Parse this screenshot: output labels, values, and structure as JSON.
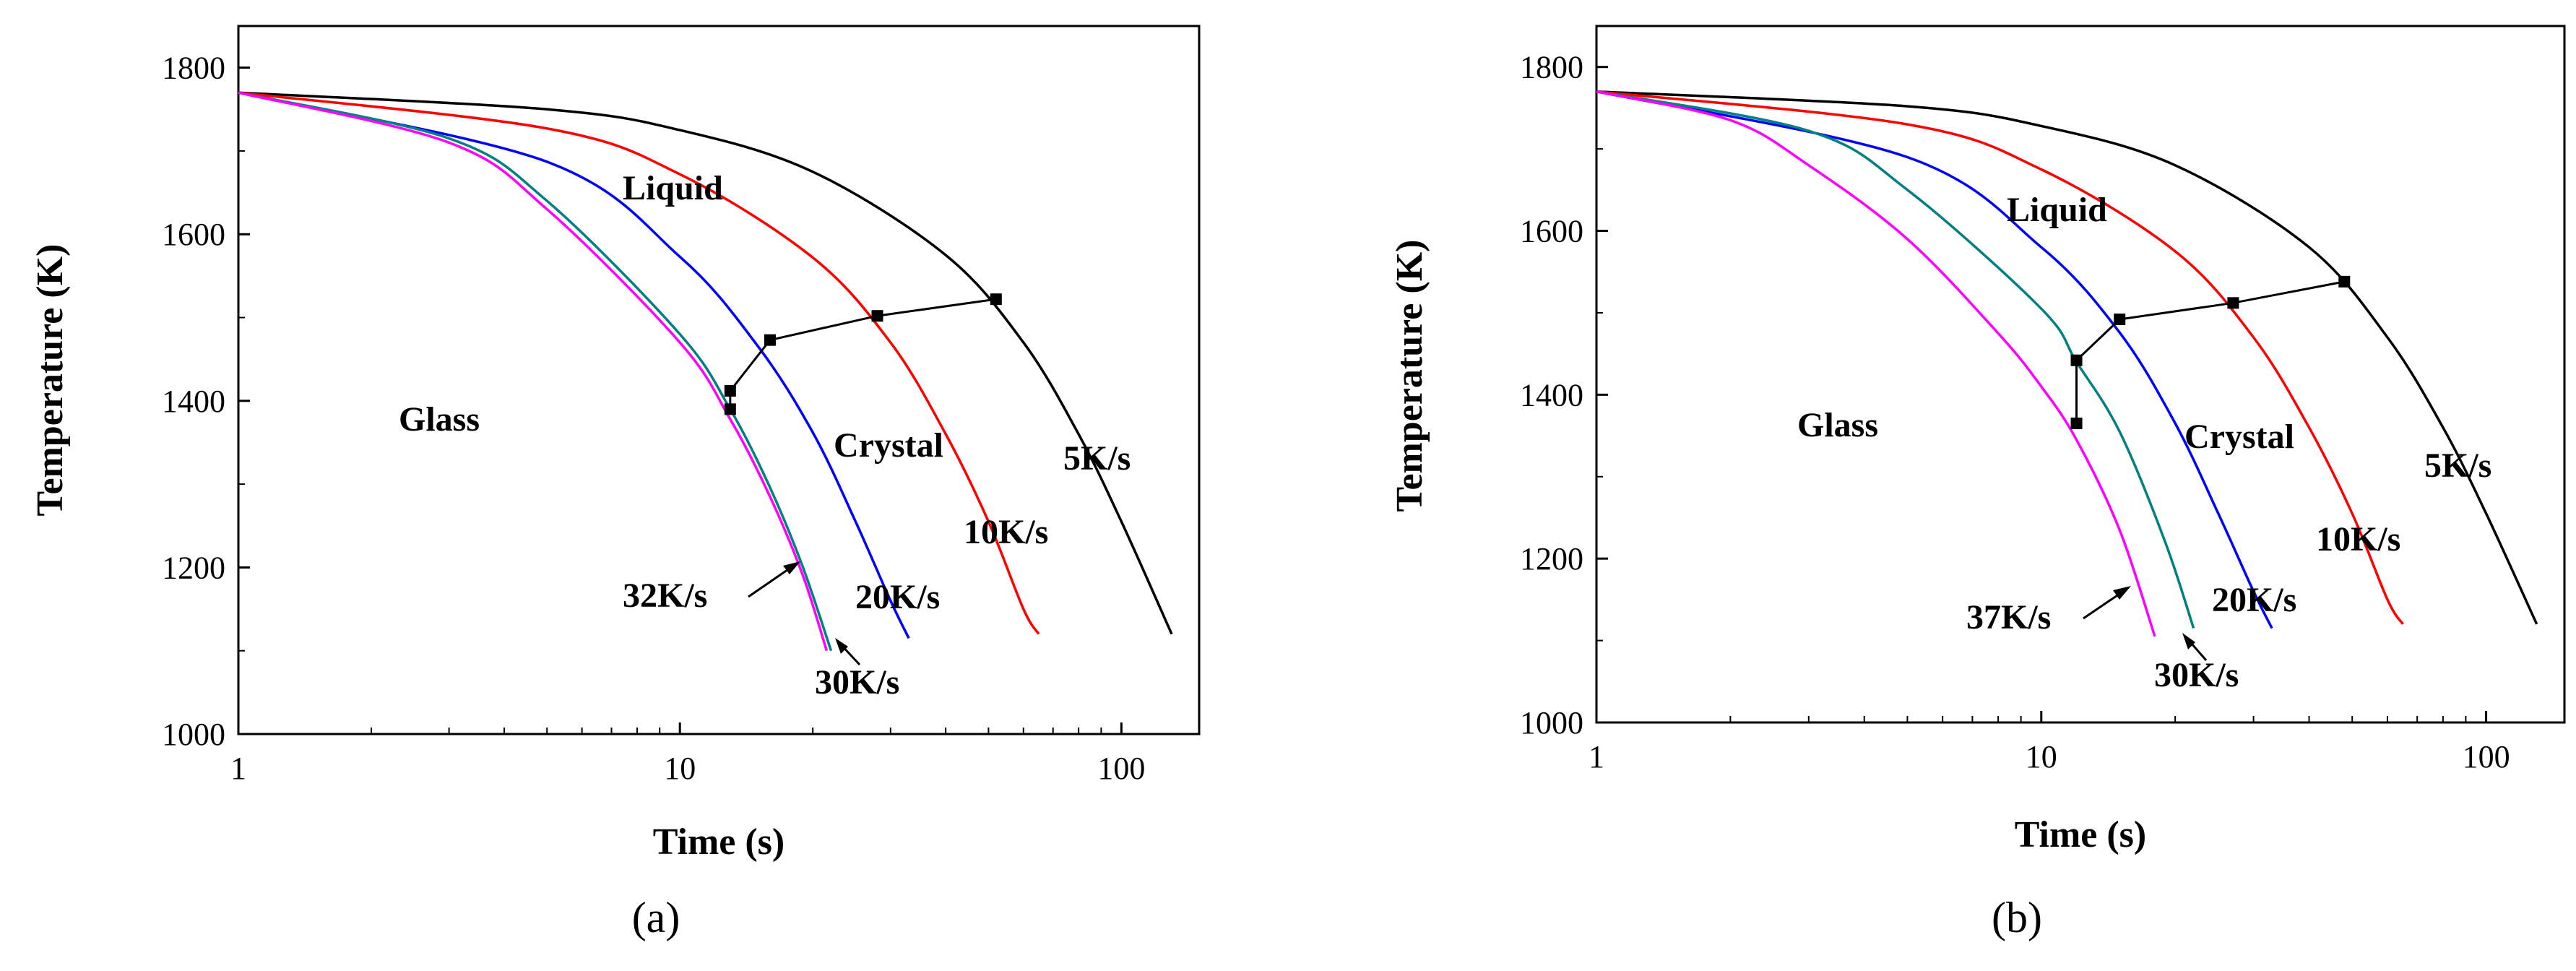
{
  "chart_data": [
    {
      "type": "line",
      "panel_label": "(a)",
      "xlabel": "Time (s)",
      "ylabel": "Temperature (K)",
      "xscale": "log",
      "xlim": [
        1,
        150
      ],
      "ylim": [
        1000,
        1850
      ],
      "x_ticks": [
        "1",
        "10",
        "100"
      ],
      "y_ticks": [
        "1000",
        "1200",
        "1400",
        "1600",
        "1800"
      ],
      "series": [
        {
          "name": "5K/s",
          "color": "#000000",
          "x": [
            1,
            5,
            10,
            20,
            40,
            60,
            80,
            100,
            130
          ],
          "y": [
            1770,
            1750,
            1725,
            1675,
            1575,
            1470,
            1360,
            1255,
            1120
          ]
        },
        {
          "name": "10K/s",
          "color": "#ff0000",
          "x": [
            1,
            5,
            10,
            20,
            30,
            40,
            50,
            60,
            65
          ],
          "y": [
            1770,
            1727,
            1672,
            1572,
            1470,
            1360,
            1255,
            1150,
            1120
          ]
        },
        {
          "name": "20K/s",
          "color": "#0000ff",
          "x": [
            1,
            5,
            10,
            15,
            20,
            25,
            30,
            33
          ],
          "y": [
            1770,
            1687,
            1573,
            1466,
            1362,
            1255,
            1160,
            1115
          ]
        },
        {
          "name": "30K/s",
          "color": "#008080",
          "x": [
            1,
            3,
            5,
            10,
            13,
            16,
            19,
            22
          ],
          "y": [
            1770,
            1715,
            1640,
            1480,
            1390,
            1296,
            1200,
            1100
          ]
        },
        {
          "name": "32K/s",
          "color": "#ff00ff",
          "x": [
            1,
            3,
            5,
            10,
            13,
            16,
            19,
            21.5
          ],
          "y": [
            1770,
            1710,
            1630,
            1470,
            1378,
            1285,
            1190,
            1100
          ]
        }
      ],
      "transition_points": {
        "x": [
          13,
          16,
          28,
          52
        ],
        "y": [
          1412,
          1473,
          1502,
          1522
        ]
      },
      "extra_marker": {
        "x": 13,
        "y": 1390
      },
      "annotations": {
        "liquid": "Liquid",
        "glass": "Glass",
        "crystal": "Crystal",
        "label_5": "5K/s",
        "label_10": "10K/s",
        "label_20": "20K/s",
        "label_30": "30K/s",
        "label_32": "32K/s"
      }
    },
    {
      "type": "line",
      "panel_label": "(b)",
      "xlabel": "Time (s)",
      "ylabel": "Temperature (K)",
      "xscale": "log",
      "xlim": [
        1,
        150
      ],
      "ylim": [
        1000,
        1850
      ],
      "x_ticks": [
        "1",
        "10",
        "100"
      ],
      "y_ticks": [
        "1000",
        "1200",
        "1400",
        "1600",
        "1800"
      ],
      "series": [
        {
          "name": "5K/s",
          "color": "#000000",
          "x": [
            1,
            5,
            10,
            20,
            40,
            60,
            80,
            100,
            130
          ],
          "y": [
            1770,
            1752,
            1728,
            1680,
            1580,
            1470,
            1360,
            1255,
            1120
          ]
        },
        {
          "name": "10K/s",
          "color": "#ff0000",
          "x": [
            1,
            5,
            10,
            20,
            30,
            40,
            50,
            60,
            65
          ],
          "y": [
            1770,
            1730,
            1675,
            1575,
            1470,
            1360,
            1255,
            1150,
            1120
          ]
        },
        {
          "name": "20K/s",
          "color": "#0000ff",
          "x": [
            1,
            5,
            10,
            15,
            20,
            25,
            30,
            33
          ],
          "y": [
            1770,
            1690,
            1580,
            1476,
            1365,
            1255,
            1160,
            1115
          ]
        },
        {
          "name": "30K/s",
          "color": "#008080",
          "x": [
            1,
            3,
            5,
            10,
            12,
            15,
            19,
            22
          ],
          "y": [
            1770,
            1722,
            1650,
            1505,
            1440,
            1355,
            1220,
            1115
          ]
        },
        {
          "name": "37K/s",
          "color": "#ff00ff",
          "x": [
            1,
            2,
            3,
            5,
            8,
            10,
            12,
            15,
            18
          ],
          "y": [
            1770,
            1735,
            1680,
            1590,
            1475,
            1410,
            1345,
            1235,
            1105
          ]
        }
      ],
      "transition_points": {
        "x": [
          12,
          15,
          27,
          48
        ],
        "y": [
          1442,
          1492,
          1512,
          1538
        ]
      },
      "extra_marker": {
        "x": 12,
        "y": 1365
      },
      "annotations": {
        "liquid": "Liquid",
        "glass": "Glass",
        "crystal": "Crystal",
        "label_5": "5K/s",
        "label_10": "10K/s",
        "label_20": "20K/s",
        "label_30": "30K/s",
        "label_32": "37K/s"
      }
    }
  ]
}
